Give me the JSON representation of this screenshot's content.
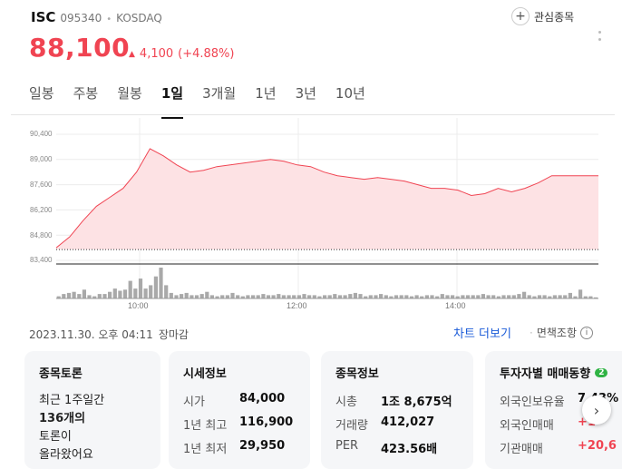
{
  "stock": {
    "name": "ISC",
    "code": "095340",
    "market": "KOSDAQ",
    "price": "88,100",
    "change": "4,100",
    "change_pct": "(+4.88%)",
    "favorite_label": "관심종목"
  },
  "tabs": [
    "일봉",
    "주봉",
    "월봉",
    "1일",
    "3개월",
    "1년",
    "3년",
    "10년"
  ],
  "active_tab": "1일",
  "chart_data": {
    "type": "area",
    "y_ticks": [
      "90,400",
      "89,000",
      "87,600",
      "86,200",
      "84,800",
      "83,400"
    ],
    "ylim": [
      83400,
      90400
    ],
    "x_ticks": [
      "10:00",
      "12:00",
      "14:00"
    ],
    "prev_close": 84000,
    "series": [
      {
        "values": [
          84100,
          84700,
          85600,
          86400,
          86900,
          87400,
          88300,
          89600,
          89200,
          88700,
          88300,
          88400,
          88600,
          88700,
          88800,
          88900,
          89000,
          88900,
          88700,
          88600,
          88300,
          88100,
          88000,
          87900,
          88000,
          87900,
          87800,
          87600,
          87400,
          87400,
          87300,
          87000,
          87100,
          87400,
          87200,
          87400,
          87700,
          88100,
          88100,
          88100
        ]
      }
    ],
    "volumes": [
      2,
      4,
      5,
      6,
      4,
      8,
      3,
      2,
      4,
      4,
      6,
      9,
      7,
      8,
      16,
      9,
      18,
      9,
      12,
      20,
      28,
      12,
      5,
      3,
      4,
      5,
      3,
      3,
      4,
      6,
      3,
      2,
      3,
      3,
      5,
      3,
      2,
      3,
      3,
      3,
      4,
      3,
      3,
      4,
      3,
      3,
      3,
      3,
      4,
      3,
      3,
      2,
      3,
      3,
      4,
      3,
      3,
      4,
      5,
      4,
      2,
      3,
      3,
      4,
      3,
      2,
      3,
      3,
      3,
      2,
      3,
      2,
      3,
      3,
      2,
      4,
      3,
      3,
      2,
      3,
      3,
      3,
      3,
      4,
      3,
      3,
      2,
      3,
      3,
      3,
      4,
      6,
      3,
      2,
      3,
      3,
      2,
      3,
      3,
      3,
      5,
      2,
      8,
      2,
      2,
      1
    ]
  },
  "status": {
    "datetime": "2023.11.30. 오후 04:11",
    "state": "장마감",
    "chart_more": "차트 더보기",
    "disclaimer": "면책조항"
  },
  "cards": {
    "discussion": {
      "title": "종목토론",
      "lines": [
        "최근 1주일간",
        "136개의",
        "토론이",
        "올라왔어요"
      ]
    },
    "market": {
      "title": "시세정보",
      "rows": [
        {
          "k": "시가",
          "v": "84,000"
        },
        {
          "k": "1년 최고",
          "v": "116,900"
        },
        {
          "k": "1년 최저",
          "v": "29,950"
        }
      ]
    },
    "info": {
      "title": "종목정보",
      "rows": [
        {
          "k": "시총",
          "v": "1조 8,675억"
        },
        {
          "k": "거래량",
          "v": "412,027"
        },
        {
          "k": "PER",
          "v": "423.56배"
        }
      ]
    },
    "investor": {
      "title": "투자자별 매매동향",
      "badge": "2",
      "rows": [
        {
          "k": "외국인보유율",
          "v": "7.43%"
        },
        {
          "k": "외국인매매",
          "v": "+1"
        },
        {
          "k": "기관매매",
          "v": "+20,6"
        }
      ]
    }
  },
  "colors": {
    "up": "#f04452",
    "link": "#1a5bd8",
    "area": "#fde2e4"
  }
}
